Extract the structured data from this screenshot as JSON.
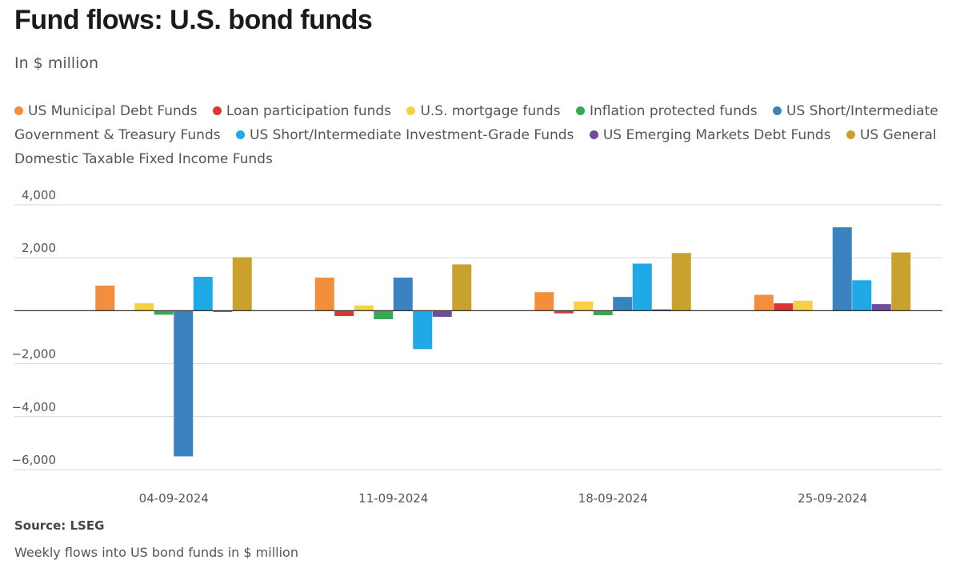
{
  "header": {
    "title": "Fund flows: U.S. bond funds",
    "subtitle": "In $ million"
  },
  "footer": {
    "source": "Source: LSEG",
    "caption": "Weekly flows into US bond funds in $ million"
  },
  "chart_data": {
    "type": "bar",
    "categories": [
      "04-09-2024",
      "11-09-2024",
      "18-09-2024",
      "25-09-2024"
    ],
    "ylim": [
      -6000,
      4000
    ],
    "yticks": [
      4000,
      2000,
      0,
      -2000,
      -4000,
      -6000
    ],
    "ytick_labels": [
      "4,000",
      "2,000",
      "",
      "−2,000",
      "−4,000",
      "−6,000"
    ],
    "grid": true,
    "legend_position": "top",
    "series": [
      {
        "name": "US Municipal Debt Funds",
        "color": "#f28e3c",
        "values": [
          950,
          1250,
          700,
          600
        ]
      },
      {
        "name": "Loan participation funds",
        "color": "#d93636",
        "values": [
          0,
          -200,
          -100,
          280
        ]
      },
      {
        "name": "U.S. mortgage funds",
        "color": "#f7d046",
        "values": [
          280,
          200,
          350,
          380
        ]
      },
      {
        "name": "Inflation protected funds",
        "color": "#38a855",
        "values": [
          -150,
          -320,
          -170,
          0
        ]
      },
      {
        "name": "US Short/Intermediate Government & Treasury Funds",
        "color": "#3a82c0",
        "values": [
          -5500,
          1250,
          520,
          3150
        ]
      },
      {
        "name": "US Short/Intermediate Investment-Grade Funds",
        "color": "#1fa9e6",
        "values": [
          1280,
          -1450,
          1780,
          1150
        ]
      },
      {
        "name": "US Emerging Markets Debt Funds",
        "color": "#6e4c9e",
        "values": [
          -30,
          -230,
          50,
          250
        ]
      },
      {
        "name": "US General Domestic Taxable Fixed Income Funds",
        "color": "#c9a22e",
        "values": [
          2020,
          1750,
          2180,
          2200
        ]
      }
    ]
  }
}
